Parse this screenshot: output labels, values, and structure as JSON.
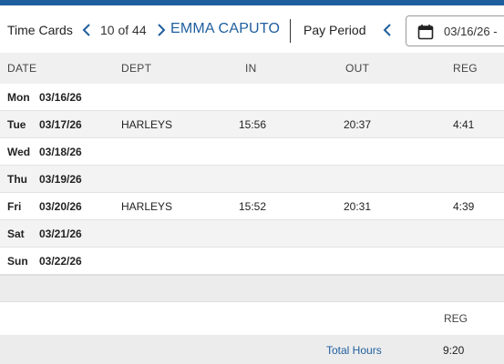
{
  "header": {
    "title": "Time Cards",
    "counter": "10 of 44",
    "employee_name": "EMMA CAPUTO",
    "pay_period_label": "Pay Period",
    "date_value": "03/16/26 -"
  },
  "icons": {
    "prev": "chevron-left-icon",
    "next": "chevron-right-icon",
    "calendar": "calendar-icon"
  },
  "colors": {
    "accent": "#1f5e9e",
    "header_band": "#f0f0f0",
    "alt_row": "#f3f3f3"
  },
  "columns": {
    "date": "DATE",
    "dept": "DEPT",
    "in": "IN",
    "out": "OUT",
    "reg": "REG"
  },
  "rows": [
    {
      "day": "Mon",
      "date": "03/16/26",
      "dept": "",
      "in": "",
      "out": "",
      "reg": ""
    },
    {
      "day": "Tue",
      "date": "03/17/26",
      "dept": "HARLEYS",
      "in": "15:56",
      "out": "20:37",
      "reg": "4:41"
    },
    {
      "day": "Wed",
      "date": "03/18/26",
      "dept": "",
      "in": "",
      "out": "",
      "reg": ""
    },
    {
      "day": "Thu",
      "date": "03/19/26",
      "dept": "",
      "in": "",
      "out": "",
      "reg": ""
    },
    {
      "day": "Fri",
      "date": "03/20/26",
      "dept": "HARLEYS",
      "in": "15:52",
      "out": "20:31",
      "reg": "4:39"
    },
    {
      "day": "Sat",
      "date": "03/21/26",
      "dept": "",
      "in": "",
      "out": "",
      "reg": ""
    },
    {
      "day": "Sun",
      "date": "03/22/26",
      "dept": "",
      "in": "",
      "out": "",
      "reg": ""
    }
  ],
  "summary": {
    "reg_header": "REG",
    "total_label": "Total Hours",
    "total_reg": "9:20"
  }
}
